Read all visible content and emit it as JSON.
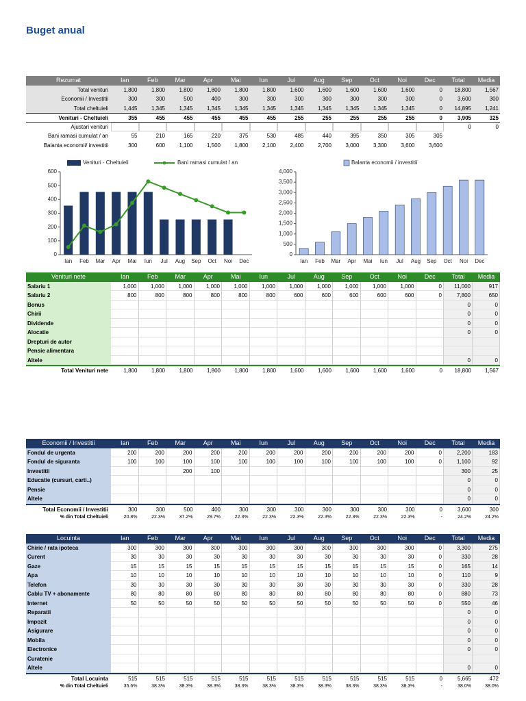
{
  "title": "Buget anual",
  "summary": {
    "header": [
      "Rezumat",
      "Ian",
      "Feb",
      "Mar",
      "Apr",
      "Mai",
      "Iun",
      "Jul",
      "Aug",
      "Sep",
      "Oct",
      "Noi",
      "Dec",
      "Total",
      "Media"
    ],
    "rows": [
      {
        "label": "Total venituri",
        "cells": [
          "1,800",
          "1,800",
          "1,800",
          "1,800",
          "1,800",
          "1,800",
          "1,600",
          "1,600",
          "1,600",
          "1,600",
          "1,600",
          "0",
          "18,800",
          "1,567"
        ]
      },
      {
        "label": "Economii / Investitii",
        "cells": [
          "300",
          "300",
          "500",
          "400",
          "300",
          "300",
          "300",
          "300",
          "300",
          "300",
          "300",
          "0",
          "3,600",
          "300"
        ]
      },
      {
        "label": "Total cheltuieli",
        "cells": [
          "1,445",
          "1,345",
          "1,345",
          "1,345",
          "1,345",
          "1,345",
          "1,345",
          "1,345",
          "1,345",
          "1,345",
          "1,345",
          "0",
          "14,895",
          "1,241"
        ]
      },
      {
        "label": "Venituri - Cheltuieli",
        "cells": [
          "355",
          "455",
          "455",
          "455",
          "455",
          "455",
          "255",
          "255",
          "255",
          "255",
          "255",
          "0",
          "3,905",
          "325"
        ]
      },
      {
        "label": "Ajustari venituri",
        "cells": [
          null,
          null,
          null,
          null,
          null,
          null,
          null,
          null,
          null,
          null,
          null,
          null,
          "0",
          "0"
        ]
      },
      {
        "label": "Bani ramasi cumulat / an",
        "cells": [
          "55",
          "210",
          "165",
          "220",
          "375",
          "530",
          "485",
          "440",
          "395",
          "350",
          "305",
          "305",
          null,
          null
        ]
      },
      {
        "label": "Balanta economii/ investitii",
        "cells": [
          "300",
          "600",
          "1,100",
          "1,500",
          "1,800",
          "2,100",
          "2,400",
          "2,700",
          "3,000",
          "3,300",
          "3,600",
          "3,600",
          null,
          null
        ]
      }
    ]
  },
  "chart_data": [
    {
      "type": "combo",
      "categories": [
        "Ian",
        "Feb",
        "Mar",
        "Apr",
        "Mai",
        "Iun",
        "Jul",
        "Aug",
        "Sep",
        "Oct",
        "Noi",
        "Dec"
      ],
      "series": [
        {
          "name": "Venituri - Cheltuieli",
          "type": "bar",
          "color": "#203864",
          "values": [
            355,
            455,
            455,
            455,
            455,
            455,
            255,
            255,
            255,
            255,
            255,
            0
          ]
        },
        {
          "name": "Bani ramasi cumulat / an",
          "type": "line",
          "color": "#3a9a2a",
          "values": [
            55,
            210,
            165,
            220,
            375,
            530,
            485,
            440,
            395,
            350,
            305,
            305
          ]
        }
      ],
      "ylim": [
        0,
        600
      ],
      "yticks": [
        0,
        100,
        200,
        300,
        400,
        500,
        600
      ]
    },
    {
      "type": "bar",
      "categories": [
        "Ian",
        "Feb",
        "Mar",
        "Apr",
        "Mai",
        "Iun",
        "Jul",
        "Aug",
        "Sep",
        "Oct",
        "Noi",
        "Dec"
      ],
      "series": [
        {
          "name": "Balanta economii / investitii",
          "color": "#a9bde6",
          "values": [
            300,
            600,
            1100,
            1500,
            1800,
            2100,
            2400,
            2700,
            3000,
            3300,
            3600,
            3600
          ]
        }
      ],
      "ylim": [
        0,
        4000
      ],
      "yticks": [
        0,
        500,
        {
          "value": 1000,
          "label": "1,000"
        },
        {
          "value": 1500,
          "label": "1,500"
        },
        {
          "value": 2000,
          "label": "2,000"
        },
        {
          "value": 2500,
          "label": "2,500"
        },
        {
          "value": 3000,
          "label": "3,000"
        },
        {
          "value": 3500,
          "label": "3,500"
        },
        {
          "value": 4000,
          "label": "4,000"
        }
      ]
    }
  ],
  "income": {
    "header": [
      "Venituri nete",
      "Ian",
      "Feb",
      "Mar",
      "Apr",
      "Mai",
      "Iun",
      "Jul",
      "Aug",
      "Sep",
      "Oct",
      "Noi",
      "Dec",
      "Total",
      "Media"
    ],
    "rows": [
      {
        "label": "Salariu 1",
        "cells": [
          "1,000",
          "1,000",
          "1,000",
          "1,000",
          "1,000",
          "1,000",
          "1,000",
          "1,000",
          "1,000",
          "1,000",
          "1,000",
          "0",
          "11,000",
          "917"
        ]
      },
      {
        "label": "Salariu 2",
        "cells": [
          "800",
          "800",
          "800",
          "800",
          "800",
          "800",
          "600",
          "600",
          "600",
          "600",
          "600",
          "0",
          "7,800",
          "650"
        ]
      },
      {
        "label": "Bonus",
        "cells": [
          null,
          null,
          null,
          null,
          null,
          null,
          null,
          null,
          null,
          null,
          null,
          null,
          "0",
          "0"
        ]
      },
      {
        "label": "Chirii",
        "cells": [
          null,
          null,
          null,
          null,
          null,
          null,
          null,
          null,
          null,
          null,
          null,
          null,
          "0",
          "0"
        ]
      },
      {
        "label": "Dividende",
        "cells": [
          null,
          null,
          null,
          null,
          null,
          null,
          null,
          null,
          null,
          null,
          null,
          null,
          "0",
          "0"
        ]
      },
      {
        "label": "Alocatie",
        "cells": [
          null,
          null,
          null,
          null,
          null,
          null,
          null,
          null,
          null,
          null,
          null,
          null,
          "0",
          "0"
        ]
      },
      {
        "label": "Drepturi de autor",
        "cells": [
          null,
          null,
          null,
          null,
          null,
          null,
          null,
          null,
          null,
          null,
          null,
          null,
          null,
          null
        ]
      },
      {
        "label": "Pensie alimentara",
        "cells": [
          null,
          null,
          null,
          null,
          null,
          null,
          null,
          null,
          null,
          null,
          null,
          null,
          null,
          null
        ]
      },
      {
        "label": "Altele",
        "cells": [
          null,
          null,
          null,
          null,
          null,
          null,
          null,
          null,
          null,
          null,
          null,
          null,
          "0",
          "0"
        ]
      }
    ],
    "totals": [
      {
        "label": "Total Venituri nete",
        "cells": [
          "1,800",
          "1,800",
          "1,800",
          "1,800",
          "1,800",
          "1,800",
          "1,600",
          "1,600",
          "1,600",
          "1,600",
          "1,600",
          "0",
          "18,800",
          "1,567"
        ]
      }
    ]
  },
  "savings": {
    "header": [
      "Economii / Investitii",
      "Ian",
      "Feb",
      "Mar",
      "Apr",
      "Mai",
      "Iun",
      "Jul",
      "Aug",
      "Sep",
      "Oct",
      "Noi",
      "Dec",
      "Total",
      "Media"
    ],
    "rows": [
      {
        "label": "Fondul de urgenta",
        "cells": [
          "200",
          "200",
          "200",
          "200",
          "200",
          "200",
          "200",
          "200",
          "200",
          "200",
          "200",
          "0",
          "2,200",
          "183"
        ]
      },
      {
        "label": "Fondul de siguranta",
        "cells": [
          "100",
          "100",
          "100",
          "100",
          "100",
          "100",
          "100",
          "100",
          "100",
          "100",
          "100",
          "0",
          "1,100",
          "92"
        ]
      },
      {
        "label": "Investitii",
        "cells": [
          null,
          null,
          "200",
          "100",
          null,
          null,
          null,
          null,
          null,
          null,
          null,
          null,
          "300",
          "25"
        ]
      },
      {
        "label": "Educatie (cursuri, carti..)",
        "cells": [
          null,
          null,
          null,
          null,
          null,
          null,
          null,
          null,
          null,
          null,
          null,
          null,
          "0",
          "0"
        ]
      },
      {
        "label": "Pensie",
        "cells": [
          null,
          null,
          null,
          null,
          null,
          null,
          null,
          null,
          null,
          null,
          null,
          null,
          "0",
          "0"
        ]
      },
      {
        "label": "Altele",
        "cells": [
          null,
          null,
          null,
          null,
          null,
          null,
          null,
          null,
          null,
          null,
          null,
          null,
          "0",
          "0"
        ]
      }
    ],
    "totals": [
      {
        "label": "Total Economii / Investitii",
        "cells": [
          "300",
          "300",
          "500",
          "400",
          "300",
          "300",
          "300",
          "300",
          "300",
          "300",
          "300",
          "0",
          "3,600",
          "300"
        ]
      },
      {
        "label": "% din Total Cheltuieli",
        "cells": [
          "20.8%",
          "22.3%",
          "37.2%",
          "29.7%",
          "22.3%",
          "22.3%",
          "22.3%",
          "22.3%",
          "22.3%",
          "22.3%",
          "22.3%",
          "-",
          "24.2%",
          "24.2%"
        ]
      }
    ]
  },
  "housing": {
    "header": [
      "Locuinta",
      "Ian",
      "Feb",
      "Mar",
      "Apr",
      "Mai",
      "Iun",
      "Jul",
      "Aug",
      "Sep",
      "Oct",
      "Noi",
      "Dec",
      "Total",
      "Media"
    ],
    "rows": [
      {
        "label": "Chirie / rata ipoteca",
        "cells": [
          "300",
          "300",
          "300",
          "300",
          "300",
          "300",
          "300",
          "300",
          "300",
          "300",
          "300",
          "0",
          "3,300",
          "275"
        ]
      },
      {
        "label": "Curent",
        "cells": [
          "30",
          "30",
          "30",
          "30",
          "30",
          "30",
          "30",
          "30",
          "30",
          "30",
          "30",
          "0",
          "330",
          "28"
        ]
      },
      {
        "label": "Gaze",
        "cells": [
          "15",
          "15",
          "15",
          "15",
          "15",
          "15",
          "15",
          "15",
          "15",
          "15",
          "15",
          "0",
          "165",
          "14"
        ]
      },
      {
        "label": "Apa",
        "cells": [
          "10",
          "10",
          "10",
          "10",
          "10",
          "10",
          "10",
          "10",
          "10",
          "10",
          "10",
          "0",
          "110",
          "9"
        ]
      },
      {
        "label": "Telefon",
        "cells": [
          "30",
          "30",
          "30",
          "30",
          "30",
          "30",
          "30",
          "30",
          "30",
          "30",
          "30",
          "0",
          "330",
          "28"
        ]
      },
      {
        "label": "Cablu TV + abonamente",
        "cells": [
          "80",
          "80",
          "80",
          "80",
          "80",
          "80",
          "80",
          "80",
          "80",
          "80",
          "80",
          "0",
          "880",
          "73"
        ]
      },
      {
        "label": "Internet",
        "cells": [
          "50",
          "50",
          "50",
          "50",
          "50",
          "50",
          "50",
          "50",
          "50",
          "50",
          "50",
          "0",
          "550",
          "46"
        ]
      },
      {
        "label": "Reparatii",
        "cells": [
          null,
          null,
          null,
          null,
          null,
          null,
          null,
          null,
          null,
          null,
          null,
          null,
          "0",
          "0"
        ]
      },
      {
        "label": "Impozit",
        "cells": [
          null,
          null,
          null,
          null,
          null,
          null,
          null,
          null,
          null,
          null,
          null,
          null,
          "0",
          "0"
        ]
      },
      {
        "label": "Asigurare",
        "cells": [
          null,
          null,
          null,
          null,
          null,
          null,
          null,
          null,
          null,
          null,
          null,
          null,
          "0",
          "0"
        ]
      },
      {
        "label": "Mobila",
        "cells": [
          null,
          null,
          null,
          null,
          null,
          null,
          null,
          null,
          null,
          null,
          null,
          null,
          "0",
          "0"
        ]
      },
      {
        "label": "Electronice",
        "cells": [
          null,
          null,
          null,
          null,
          null,
          null,
          null,
          null,
          null,
          null,
          null,
          null,
          "0",
          "0"
        ]
      },
      {
        "label": "Curatenie",
        "cells": [
          null,
          null,
          null,
          null,
          null,
          null,
          null,
          null,
          null,
          null,
          null,
          null,
          null,
          null
        ]
      },
      {
        "label": "Altele",
        "cells": [
          null,
          null,
          null,
          null,
          null,
          null,
          null,
          null,
          null,
          null,
          null,
          null,
          "0",
          "0"
        ]
      }
    ],
    "totals": [
      {
        "label": "Total Locuinta",
        "cells": [
          "515",
          "515",
          "515",
          "515",
          "515",
          "515",
          "515",
          "515",
          "515",
          "515",
          "515",
          "0",
          "5,665",
          "472"
        ]
      },
      {
        "label": "% din Total Cheltuieli",
        "cells": [
          "35.6%",
          "38.3%",
          "38.3%",
          "38.3%",
          "38.3%",
          "38.3%",
          "38.3%",
          "38.3%",
          "38.3%",
          "38.3%",
          "38.3%",
          "-",
          "38.0%",
          "38.0%"
        ]
      }
    ]
  }
}
